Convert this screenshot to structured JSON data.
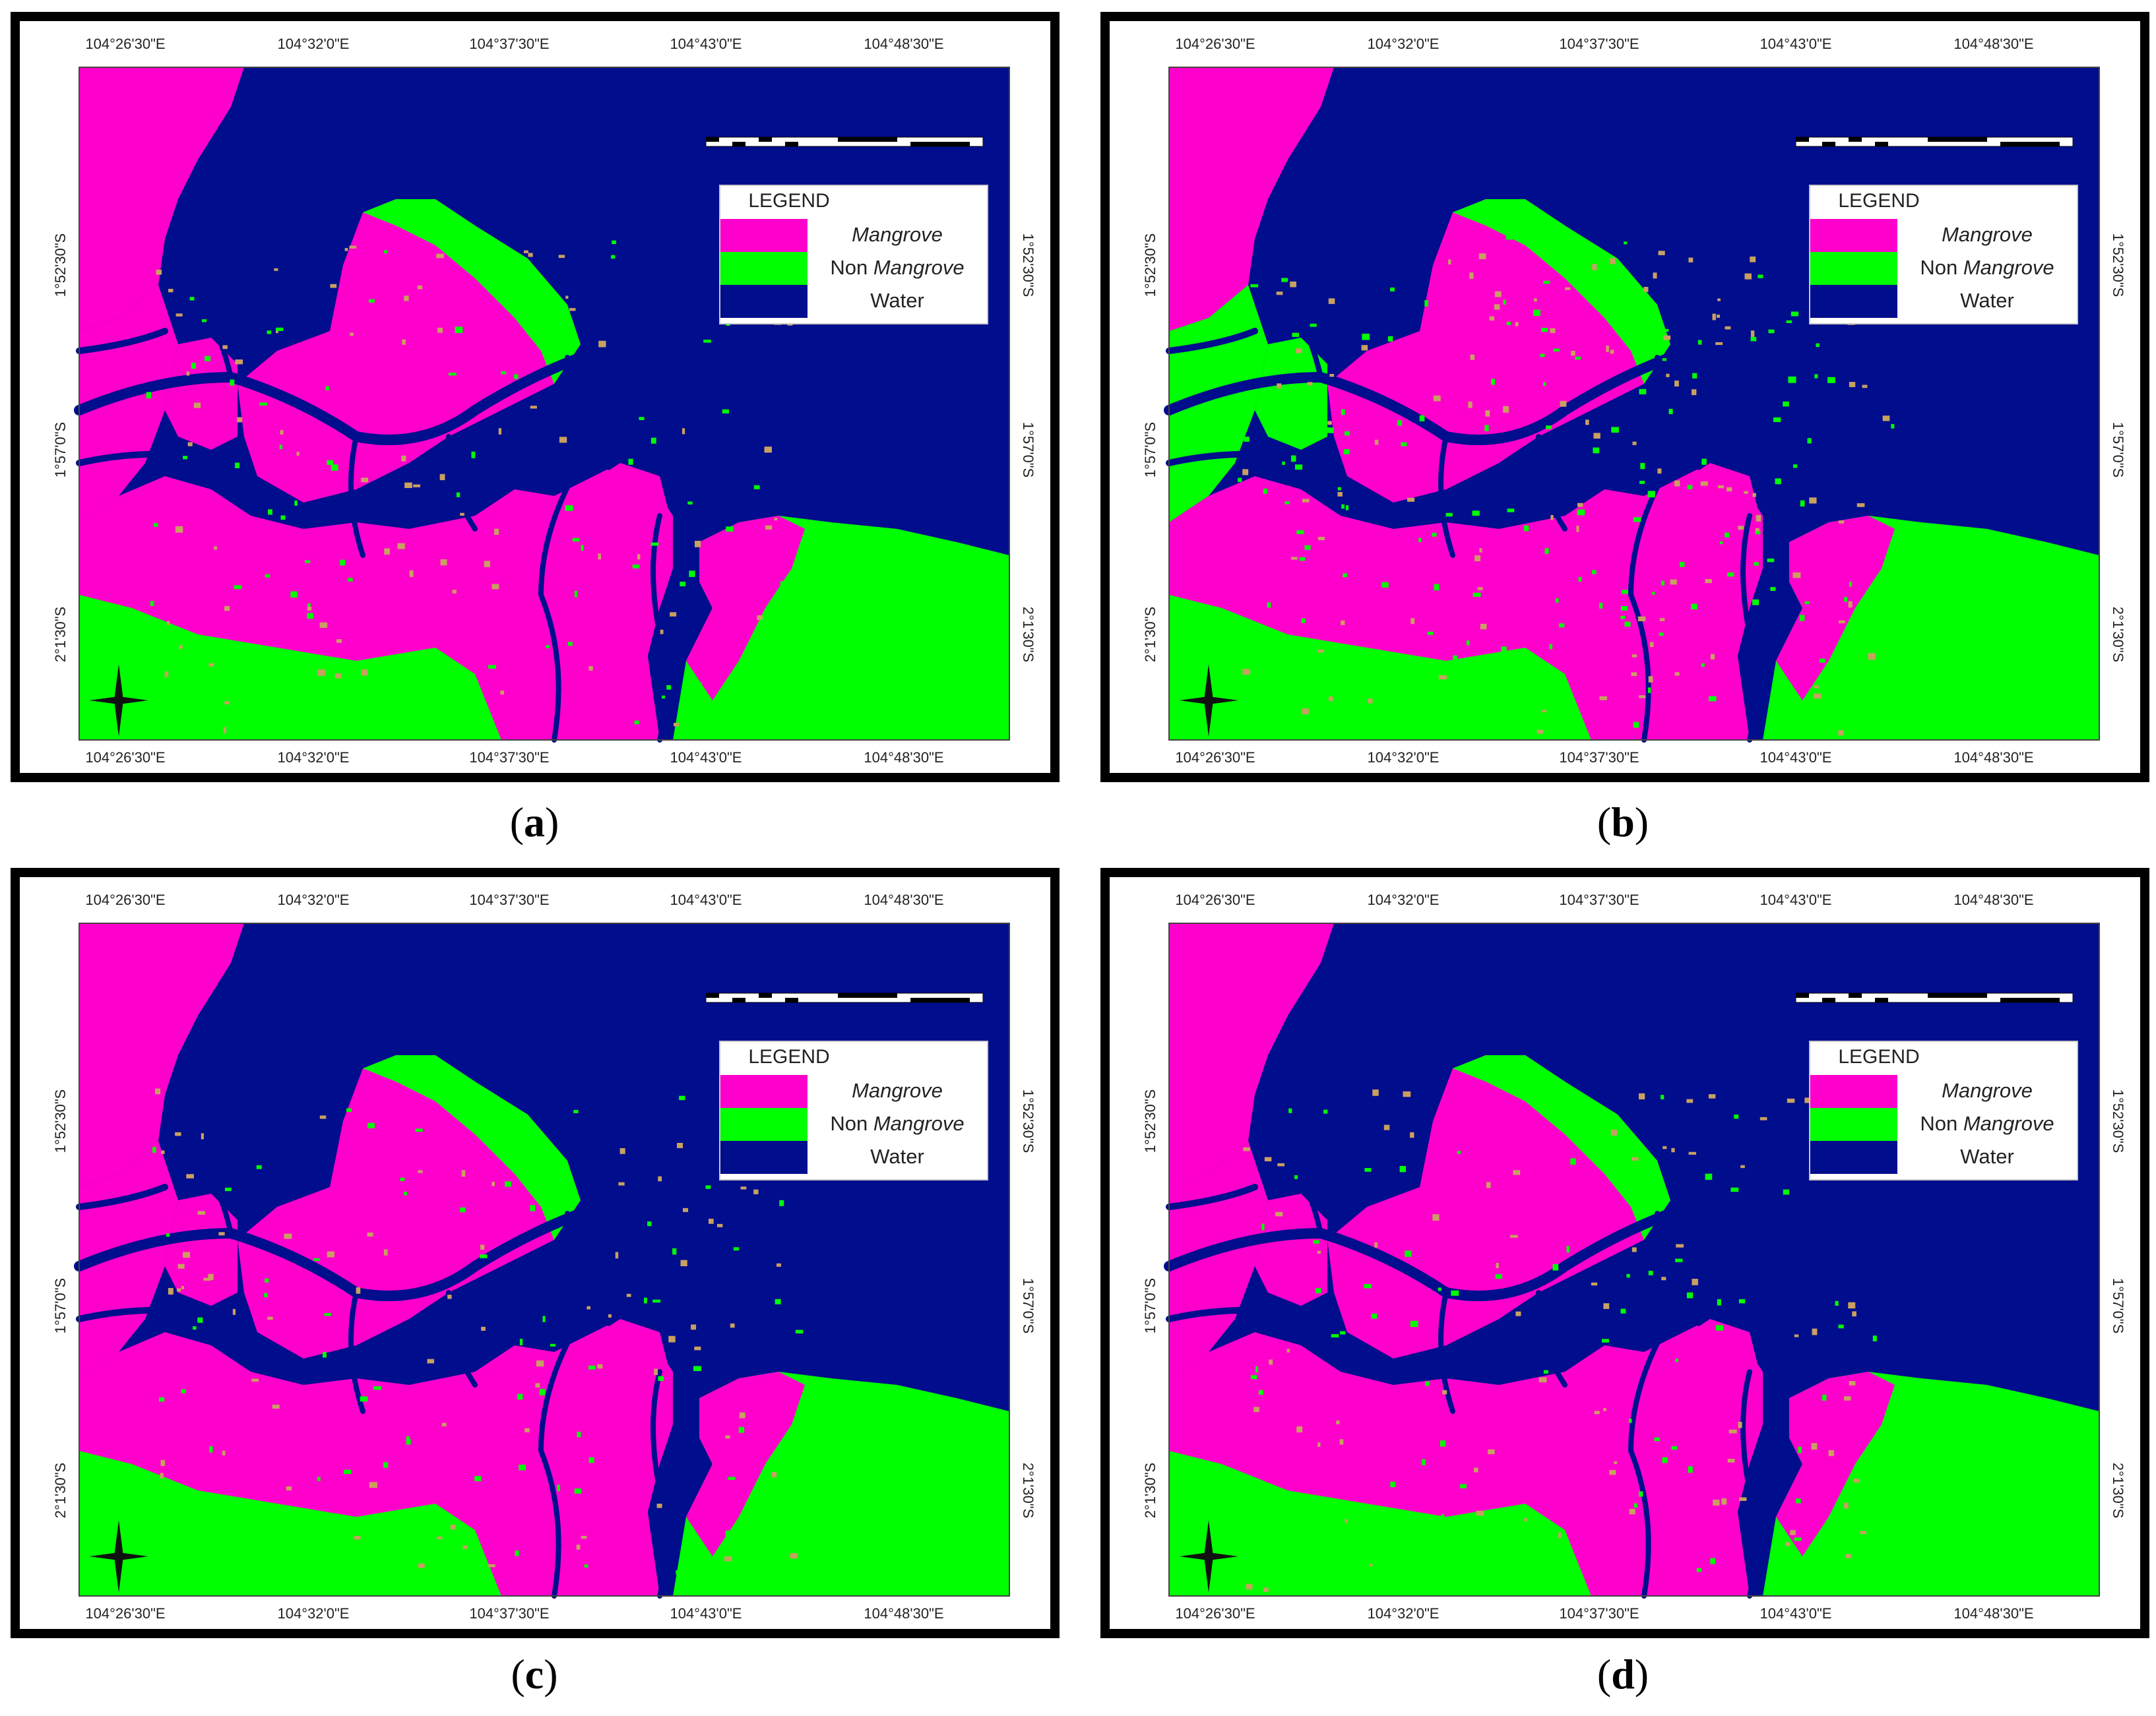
{
  "colors": {
    "mangrove": "#ff00cc",
    "non_mangrove": "#00ff00",
    "water": "#000d8c",
    "mixed_speckle": "#c8a060"
  },
  "legend": {
    "title": "LEGEND",
    "items": [
      {
        "label": "Mangrove",
        "italic": "Mangrove",
        "prefix": ""
      },
      {
        "label": "Non Mangrove",
        "italic": "Mangrove",
        "prefix": "Non "
      },
      {
        "label": "Water",
        "italic": "",
        "prefix": "Water"
      }
    ]
  },
  "panels": [
    {
      "label": "a",
      "top_ticks": [
        "104°26'30\"E",
        "104°32'0\"E",
        "104°37'30\"E",
        "104°43'0\"E",
        "104°48'30\"E"
      ],
      "bottom_ticks": [
        "104°26'30\"E",
        "104°32'0\"E",
        "104°37'30\"E",
        "104°43'0\"E",
        "104°48'30\"E"
      ],
      "left_ticks": [
        "1°52'30\"S",
        "1°57'0\"S",
        "2°1'30\"S"
      ],
      "right_ticks": [
        "1°52'30\"S",
        "1°57'0\"S",
        "2°1'30\"S"
      ]
    },
    {
      "label": "b",
      "top_ticks": [
        "104°26'30\"E",
        "104°32'0\"E",
        "104°37'30\"E",
        "104°43'0\"E",
        "104°48'30\"E"
      ],
      "bottom_ticks": [
        "104°26'30\"E",
        "104°32'0\"E",
        "104°37'30\"E",
        "104°43'0\"E",
        "104°48'30\"E"
      ],
      "left_ticks": [
        "1°52'30\"S",
        "1°57'0\"S",
        "2°1'30\"S"
      ],
      "right_ticks": [
        "1°52'30\"S",
        "1°57'0\"S",
        "2°1'30\"S"
      ]
    },
    {
      "label": "c",
      "top_ticks": [
        "104°26'30\"E",
        "104°32'0\"E",
        "104°37'30\"E",
        "104°43'0\"E",
        "104°48'30\"E"
      ],
      "bottom_ticks": [
        "104°26'30\"E",
        "104°32'0\"E",
        "104°37'30\"E",
        "104°43'0\"E",
        "104°48'30\"E"
      ],
      "left_ticks": [
        "1°52'30\"S",
        "1°57'0\"S",
        "2°1'30\"S"
      ],
      "right_ticks": [
        "1°52'30\"S",
        "1°57'0\"S",
        "2°1'30\"S"
      ]
    },
    {
      "label": "d",
      "top_ticks": [
        "104°26'30\"E",
        "104°32'0\"E",
        "104°37'30\"E",
        "104°43'0\"E",
        "104°48'30\"E"
      ],
      "bottom_ticks": [
        "104°26'30\"E",
        "104°32'0\"E",
        "104°37'30\"E",
        "104°43'0\"E",
        "104°48'30\"E"
      ],
      "left_ticks": [
        "1°52'30\"S",
        "1°57'0\"S",
        "2°1'30\"S"
      ],
      "right_ticks": [
        "1°52'30\"S",
        "1°57'0\"S",
        "2°1'30\"S"
      ]
    }
  ],
  "icons": {
    "north_arrow": "compass-rose-icon",
    "scale_bar": "scale-bar"
  }
}
